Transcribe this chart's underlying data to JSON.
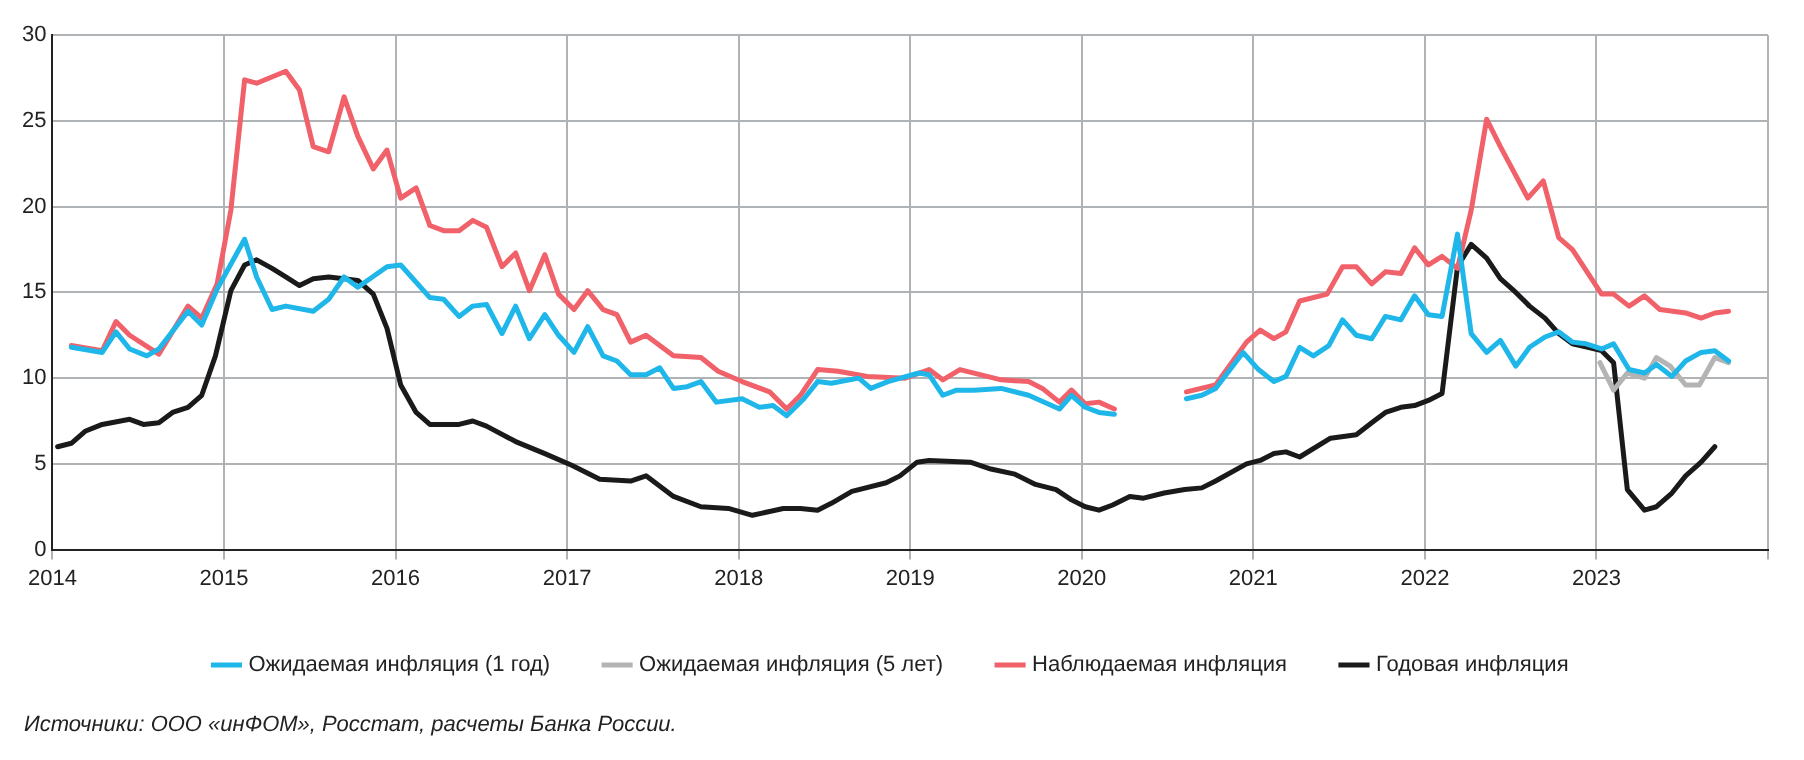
{
  "chart_data": {
    "type": "line",
    "xlim": [
      2014,
      2024
    ],
    "xticks": [
      2014,
      2015,
      2016,
      2017,
      2018,
      2019,
      2020,
      2021,
      2022,
      2023,
      {
        "value": 2024,
        "label": null
      }
    ],
    "ylim": [
      0,
      30
    ],
    "yticks": [
      0,
      5,
      10,
      15,
      20,
      25,
      30
    ],
    "grid": true,
    "legend": "bottom",
    "marker": "none",
    "line_style": "solid",
    "annotations": [
      "Источники: ООО «инФОМ», Росстат, расчеты Банка России."
    ],
    "series": [
      {
        "name": "Ожидаемая инфляция (1 год)",
        "color": "#1fb7ea",
        "x": [
          2014.11,
          2014.29,
          2014.37,
          2014.45,
          2014.55,
          2014.62,
          2014.79,
          2014.87,
          2014.96,
          2015.12,
          2015.19,
          2015.28,
          2015.36,
          2015.52,
          2015.61,
          2015.7,
          2015.78,
          2015.95,
          2016.03,
          2016.2,
          2016.28,
          2016.37,
          2016.45,
          2016.53,
          2016.62,
          2016.7,
          2016.78,
          2016.87,
          2016.95,
          2017.04,
          2017.12,
          2017.21,
          2017.29,
          2017.37,
          2017.46,
          2017.54,
          2017.62,
          2017.7,
          2017.78,
          2017.87,
          2018.02,
          2018.12,
          2018.2,
          2018.28,
          2018.38,
          2018.46,
          2018.54,
          2018.7,
          2018.77,
          2018.87,
          2019.05,
          2019.11,
          2019.19,
          2019.27,
          2019.37,
          2019.53,
          2019.69,
          2019.87,
          2019.94,
          2020.02,
          2020.1,
          2020.19,
          2020.4,
          2020.61,
          2020.7,
          2020.78,
          2020.94,
          2021.03,
          2021.12,
          2021.19,
          2021.27,
          2021.35,
          2021.44,
          2021.52,
          2021.6,
          2021.69,
          2021.77,
          2021.86,
          2021.94,
          2022.02,
          2022.1,
          2022.19,
          2022.27,
          2022.36,
          2022.44,
          2022.53,
          2022.61,
          2022.7,
          2022.78,
          2022.86,
          2022.94,
          2023.03,
          2023.1,
          2023.19,
          2023.28,
          2023.35,
          2023.44,
          2023.52,
          2023.61,
          2023.69,
          2023.77
        ],
        "values": [
          11.8,
          11.5,
          12.7,
          11.7,
          11.3,
          11.7,
          13.9,
          13.1,
          15.2,
          18.1,
          15.9,
          14.0,
          14.2,
          13.9,
          14.6,
          15.9,
          15.3,
          16.5,
          16.6,
          14.7,
          14.6,
          13.6,
          14.2,
          14.3,
          12.6,
          14.2,
          12.3,
          13.7,
          12.5,
          11.5,
          13.0,
          11.3,
          11.0,
          10.2,
          10.2,
          10.6,
          9.4,
          9.5,
          9.8,
          8.6,
          8.8,
          8.3,
          8.4,
          7.8,
          8.8,
          9.8,
          9.7,
          10.0,
          9.4,
          9.8,
          10.3,
          10.2,
          9.0,
          9.3,
          9.3,
          9.4,
          9.0,
          8.2,
          9.0,
          8.3,
          8.0,
          7.9,
          null,
          8.8,
          9.0,
          9.4,
          11.5,
          10.5,
          9.8,
          10.1,
          11.8,
          11.3,
          11.9,
          13.4,
          12.5,
          12.3,
          13.6,
          13.4,
          14.8,
          13.7,
          13.6,
          18.4,
          12.6,
          11.5,
          12.2,
          10.7,
          11.8,
          12.4,
          12.7,
          12.1,
          12.0,
          11.7,
          12.0,
          10.5,
          10.3,
          10.8,
          10.1,
          11.0,
          11.5,
          11.6,
          11.0
        ]
      },
      {
        "name": "Ожидаемая инфляция (5 лет)",
        "color": "#b4b4b4",
        "x": [
          2023.02,
          2023.1,
          2023.18,
          2023.28,
          2023.35,
          2023.43,
          2023.52,
          2023.6,
          2023.69,
          2023.77
        ],
        "values": [
          10.9,
          9.3,
          10.3,
          10.0,
          11.2,
          10.7,
          9.6,
          9.6,
          11.2,
          10.9
        ]
      },
      {
        "name": "Наблюдаемая инфляция",
        "color": "#f0616a",
        "x": [
          2014.11,
          2014.29,
          2014.37,
          2014.45,
          2014.62,
          2014.79,
          2014.87,
          2014.96,
          2015.04,
          2015.12,
          2015.19,
          2015.36,
          2015.44,
          2015.52,
          2015.61,
          2015.7,
          2015.78,
          2015.87,
          2015.95,
          2016.03,
          2016.12,
          2016.2,
          2016.28,
          2016.37,
          2016.45,
          2016.53,
          2016.62,
          2016.7,
          2016.78,
          2016.87,
          2016.95,
          2017.04,
          2017.12,
          2017.21,
          2017.29,
          2017.37,
          2017.46,
          2017.62,
          2017.78,
          2017.88,
          2018.02,
          2018.18,
          2018.28,
          2018.36,
          2018.46,
          2018.58,
          2018.75,
          2018.97,
          2019.11,
          2019.19,
          2019.29,
          2019.53,
          2019.69,
          2019.77,
          2019.87,
          2019.94,
          2020.02,
          2020.1,
          2020.19,
          2020.4,
          2020.61,
          2020.78,
          2020.96,
          2021.04,
          2021.12,
          2021.19,
          2021.27,
          2021.43,
          2021.52,
          2021.6,
          2021.69,
          2021.77,
          2021.86,
          2021.94,
          2022.02,
          2022.1,
          2022.19,
          2022.27,
          2022.36,
          2022.44,
          2022.6,
          2022.69,
          2022.78,
          2022.86,
          2023.03,
          2023.1,
          2023.19,
          2023.28,
          2023.37,
          2023.52,
          2023.61,
          2023.69,
          2023.77
        ],
        "values": [
          11.9,
          11.6,
          13.3,
          12.5,
          11.4,
          14.2,
          13.5,
          15.5,
          19.8,
          27.4,
          27.2,
          27.9,
          26.8,
          23.5,
          23.2,
          26.4,
          24.1,
          22.2,
          23.3,
          20.5,
          21.1,
          18.9,
          18.6,
          18.6,
          19.2,
          18.8,
          16.5,
          17.3,
          15.1,
          17.2,
          14.9,
          14.0,
          15.1,
          14.0,
          13.7,
          12.1,
          12.5,
          11.3,
          11.2,
          10.4,
          9.8,
          9.2,
          8.2,
          9.0,
          10.5,
          10.4,
          10.1,
          10.0,
          10.5,
          9.9,
          10.5,
          9.9,
          9.8,
          9.4,
          8.6,
          9.3,
          8.5,
          8.6,
          8.2,
          null,
          9.2,
          9.6,
          12.1,
          12.8,
          12.3,
          12.7,
          14.5,
          14.9,
          16.5,
          16.5,
          15.5,
          16.2,
          16.1,
          17.6,
          16.6,
          17.1,
          16.4,
          19.8,
          25.1,
          23.5,
          20.5,
          21.5,
          18.2,
          17.5,
          14.9,
          14.9,
          14.2,
          14.8,
          14.0,
          13.8,
          13.5,
          13.8,
          13.9
        ]
      },
      {
        "name": "Годовая инфляция",
        "color": "#1a1a1a",
        "x": [
          2014.03,
          2014.11,
          2014.19,
          2014.29,
          2014.45,
          2014.53,
          2014.62,
          2014.7,
          2014.79,
          2014.87,
          2014.95,
          2015.04,
          2015.12,
          2015.19,
          2015.28,
          2015.36,
          2015.44,
          2015.52,
          2015.61,
          2015.7,
          2015.78,
          2015.87,
          2015.95,
          2016.03,
          2016.12,
          2016.2,
          2016.37,
          2016.45,
          2016.53,
          2016.7,
          2016.87,
          2017.03,
          2017.19,
          2017.37,
          2017.46,
          2017.62,
          2017.78,
          2017.94,
          2018.08,
          2018.26,
          2018.36,
          2018.46,
          2018.54,
          2018.66,
          2018.86,
          2018.94,
          2019.04,
          2019.11,
          2019.35,
          2019.47,
          2019.61,
          2019.73,
          2019.85,
          2019.94,
          2020.02,
          2020.1,
          2020.18,
          2020.28,
          2020.36,
          2020.48,
          2020.6,
          2020.7,
          2020.78,
          2020.96,
          2021.04,
          2021.12,
          2021.19,
          2021.27,
          2021.45,
          2021.6,
          2021.69,
          2021.77,
          2021.86,
          2021.94,
          2022.02,
          2022.1,
          2022.19,
          2022.27,
          2022.36,
          2022.44,
          2022.53,
          2022.61,
          2022.7,
          2022.78,
          2022.86,
          2022.95,
          2023.03,
          2023.1,
          2023.18,
          2023.28,
          2023.35,
          2023.44,
          2023.52,
          2023.61,
          2023.69
        ],
        "values": [
          6.0,
          6.2,
          6.9,
          7.3,
          7.6,
          7.3,
          7.4,
          8.0,
          8.3,
          9.0,
          11.3,
          15.1,
          16.6,
          16.9,
          16.4,
          15.9,
          15.4,
          15.8,
          15.9,
          15.8,
          15.7,
          14.9,
          12.9,
          9.6,
          8.0,
          7.3,
          7.3,
          7.5,
          7.2,
          6.3,
          5.6,
          4.9,
          4.1,
          4.0,
          4.3,
          3.1,
          2.5,
          2.4,
          2.0,
          2.4,
          2.4,
          2.3,
          2.7,
          3.4,
          3.9,
          4.3,
          5.1,
          5.2,
          5.1,
          4.7,
          4.4,
          3.8,
          3.5,
          2.9,
          2.5,
          2.3,
          2.6,
          3.1,
          3.0,
          3.3,
          3.5,
          3.6,
          4.0,
          5.0,
          5.2,
          5.6,
          5.7,
          5.4,
          6.5,
          6.7,
          7.4,
          8.0,
          8.3,
          8.4,
          8.7,
          9.1,
          16.5,
          17.8,
          17.0,
          15.8,
          15.0,
          14.2,
          13.5,
          12.6,
          12.0,
          11.8,
          11.6,
          10.9,
          3.5,
          2.3,
          2.5,
          3.3,
          4.3,
          5.1,
          6.0
        ]
      }
    ]
  }
}
